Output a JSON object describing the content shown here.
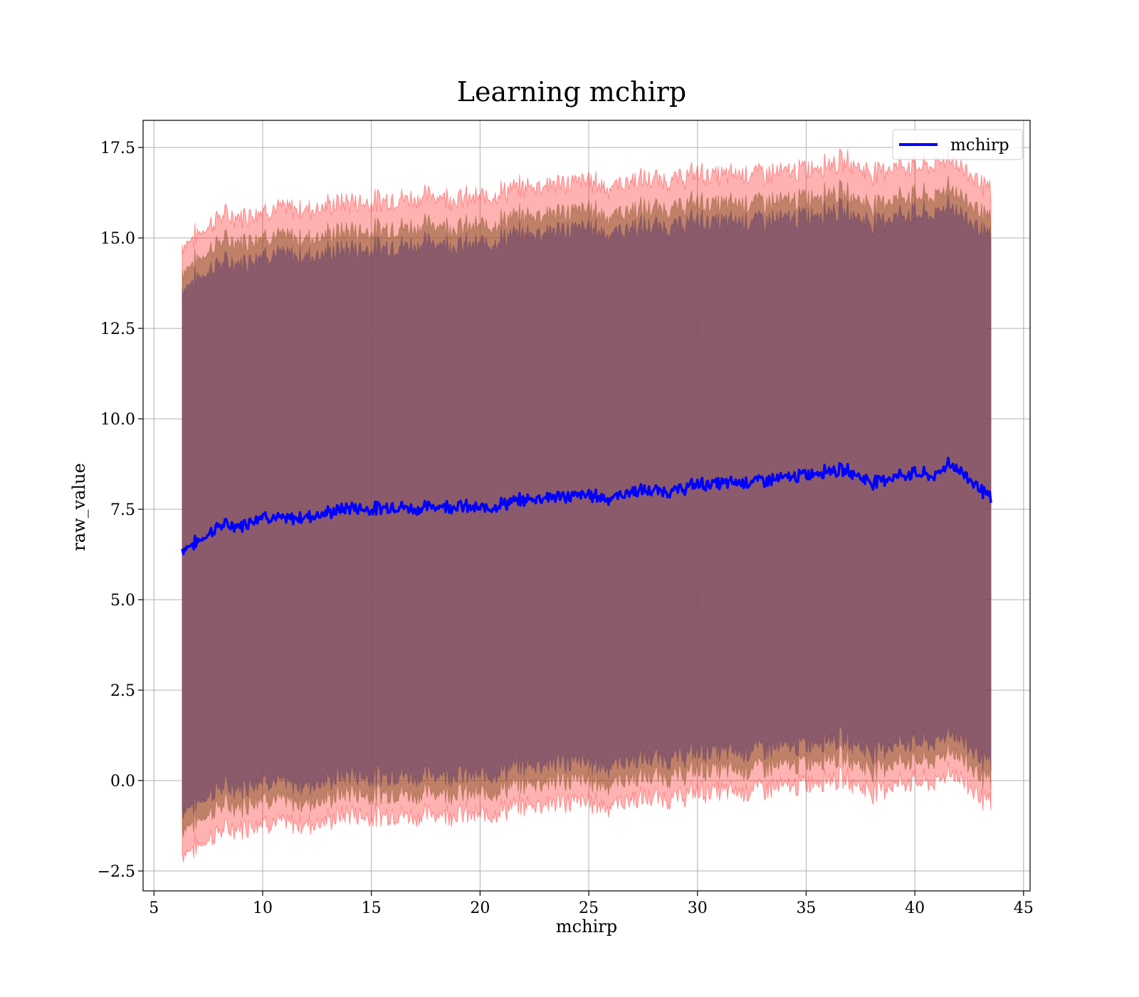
{
  "chart_data": {
    "type": "line",
    "title": "Learning mchirp",
    "xlabel": "mchirp",
    "ylabel": "raw_value",
    "xlim": [
      4.5,
      45.3
    ],
    "ylim": [
      -3.05,
      18.25
    ],
    "xticks": [
      5,
      10,
      15,
      20,
      25,
      30,
      35,
      40,
      45
    ],
    "xtick_labels": [
      "5",
      "10",
      "15",
      "20",
      "25",
      "30",
      "35",
      "40",
      "45"
    ],
    "yticks": [
      -2.5,
      0.0,
      2.5,
      5.0,
      7.5,
      10.0,
      12.5,
      15.0,
      17.5
    ],
    "ytick_labels": [
      "−2.5",
      "0.0",
      "2.5",
      "5.0",
      "7.5",
      "10.0",
      "12.5",
      "15.0",
      "17.5"
    ],
    "grid": true,
    "legend": {
      "position": "top-right",
      "entries": [
        {
          "label": "mchirp",
          "color": "#0000ff"
        }
      ]
    },
    "colors": {
      "line": "#0000ff",
      "band_outer": "#ff000055",
      "band_mid": "#8b5a2b",
      "band_inner": "#7a4f6e",
      "grid": "#b0b0b0"
    },
    "series": [
      {
        "name": "mchirp",
        "role": "mean",
        "x": [
          6.3,
          7.0,
          8.0,
          9.0,
          10.0,
          11.0,
          12.0,
          13.0,
          14.0,
          15.0,
          16.0,
          17.0,
          18.0,
          19.0,
          20.0,
          21.0,
          22.0,
          23.0,
          24.0,
          25.0,
          26.0,
          27.0,
          28.0,
          29.0,
          30.0,
          31.0,
          32.0,
          33.0,
          34.0,
          35.0,
          36.0,
          37.0,
          38.0,
          39.0,
          40.0,
          41.0,
          41.5,
          42.0,
          43.0,
          43.5
        ],
        "y": [
          6.4,
          6.6,
          7.05,
          7.05,
          7.35,
          7.2,
          7.3,
          7.4,
          7.55,
          7.5,
          7.6,
          7.5,
          7.6,
          7.6,
          7.5,
          7.65,
          7.75,
          7.85,
          7.85,
          7.9,
          7.8,
          8.0,
          8.0,
          8.0,
          8.2,
          8.2,
          8.25,
          8.3,
          8.35,
          8.45,
          8.6,
          8.55,
          8.25,
          8.4,
          8.5,
          8.4,
          8.8,
          8.6,
          8.1,
          7.75
        ]
      },
      {
        "name": "",
        "role": "band",
        "x": [
          6.3,
          7.0,
          8.0,
          9.0,
          10.0,
          11.0,
          12.0,
          13.0,
          14.0,
          15.0,
          16.0,
          17.0,
          18.0,
          19.0,
          20.0,
          21.0,
          22.0,
          23.0,
          24.0,
          25.0,
          26.0,
          27.0,
          28.0,
          29.0,
          30.0,
          31.0,
          32.0,
          33.0,
          34.0,
          35.0,
          36.0,
          37.0,
          38.0,
          39.0,
          40.0,
          41.0,
          41.5,
          42.0,
          43.0,
          43.5
        ],
        "outer_upper": [
          14.8,
          15.1,
          15.6,
          15.6,
          15.8,
          15.8,
          15.8,
          15.9,
          16.0,
          16.0,
          16.1,
          16.1,
          16.2,
          16.1,
          16.1,
          16.3,
          16.4,
          16.5,
          16.5,
          16.6,
          16.4,
          16.6,
          16.6,
          16.6,
          16.8,
          16.7,
          16.8,
          16.8,
          16.8,
          16.9,
          17.1,
          17.1,
          16.8,
          17.0,
          17.0,
          17.0,
          17.3,
          17.0,
          16.6,
          16.2
        ],
        "mid_upper": [
          14.1,
          14.4,
          14.9,
          14.9,
          15.1,
          15.0,
          15.0,
          15.1,
          15.2,
          15.2,
          15.3,
          15.3,
          15.4,
          15.3,
          15.3,
          15.5,
          15.6,
          15.7,
          15.7,
          15.8,
          15.6,
          15.8,
          15.8,
          15.8,
          16.0,
          15.9,
          16.0,
          16.0,
          16.0,
          16.1,
          16.3,
          16.2,
          15.9,
          16.1,
          16.2,
          16.1,
          16.5,
          16.2,
          15.8,
          15.4
        ],
        "inner_upper": [
          13.6,
          13.9,
          14.3,
          14.3,
          14.6,
          14.5,
          14.5,
          14.6,
          14.7,
          14.7,
          14.8,
          14.8,
          14.9,
          14.8,
          14.8,
          15.0,
          15.1,
          15.2,
          15.2,
          15.3,
          15.1,
          15.3,
          15.3,
          15.3,
          15.5,
          15.4,
          15.5,
          15.5,
          15.5,
          15.6,
          15.8,
          15.7,
          15.4,
          15.6,
          15.7,
          15.6,
          16.0,
          15.7,
          15.3,
          14.9
        ],
        "inner_lower": [
          -0.8,
          -0.6,
          -0.2,
          -0.2,
          0.1,
          -0.1,
          -0.1,
          0.0,
          0.2,
          0.1,
          0.2,
          0.1,
          0.2,
          0.2,
          0.1,
          0.3,
          0.4,
          0.5,
          0.5,
          0.5,
          0.4,
          0.6,
          0.6,
          0.6,
          0.8,
          0.8,
          0.8,
          0.9,
          0.9,
          1.0,
          1.2,
          1.1,
          0.8,
          1.0,
          1.1,
          1.0,
          1.4,
          1.2,
          0.7,
          0.4
        ],
        "mid_lower": [
          -1.3,
          -1.1,
          -0.7,
          -0.7,
          -0.4,
          -0.6,
          -0.6,
          -0.5,
          -0.3,
          -0.4,
          -0.3,
          -0.4,
          -0.3,
          -0.3,
          -0.4,
          -0.2,
          -0.1,
          0.0,
          0.0,
          0.0,
          -0.1,
          0.1,
          0.1,
          0.1,
          0.3,
          0.3,
          0.3,
          0.4,
          0.4,
          0.5,
          0.7,
          0.6,
          0.3,
          0.5,
          0.6,
          0.5,
          0.9,
          0.7,
          0.2,
          -0.1
        ],
        "outer_lower": [
          -2.0,
          -1.8,
          -1.4,
          -1.3,
          -1.1,
          -1.2,
          -1.2,
          -1.1,
          -0.9,
          -1.0,
          -0.9,
          -1.0,
          -0.9,
          -0.9,
          -1.0,
          -0.8,
          -0.7,
          -0.6,
          -0.6,
          -0.6,
          -0.7,
          -0.5,
          -0.5,
          -0.5,
          -0.3,
          -0.3,
          -0.3,
          -0.2,
          -0.2,
          -0.1,
          0.1,
          0.0,
          -0.3,
          -0.1,
          0.0,
          -0.1,
          0.3,
          0.1,
          -0.4,
          -0.7
        ]
      }
    ]
  }
}
